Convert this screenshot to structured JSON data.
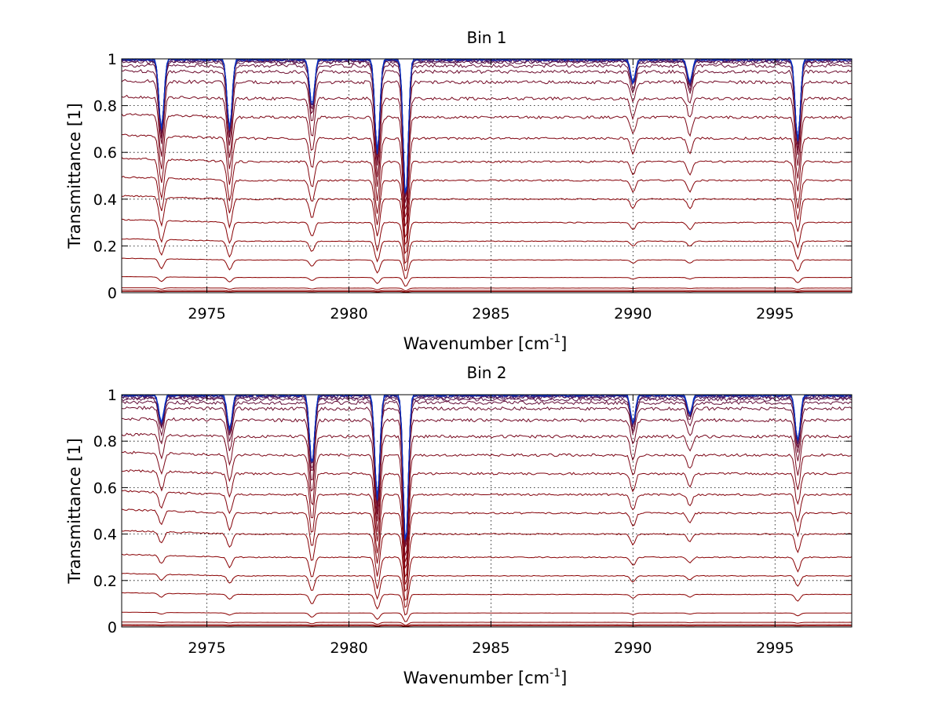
{
  "chart_data": [
    {
      "type": "line",
      "title": "Bin 1",
      "xlabel": {
        "main": "Wavenumber [cm",
        "sup": "-1",
        "end": "]"
      },
      "ylabel": "Transmittance [1]",
      "xlim": [
        2972,
        2997.7
      ],
      "ylim": [
        0,
        1
      ],
      "xticks": [
        2975,
        2980,
        2985,
        2990,
        2995
      ],
      "yticks": [
        0,
        0.2,
        0.4,
        0.6,
        0.8,
        1
      ],
      "ytick_labels": [
        "0",
        "0.2",
        "0.4",
        "0.6",
        "0.8",
        "1"
      ],
      "grid": true,
      "legend": "none",
      "series_count": 24,
      "series_baselines": [
        0.005,
        0.01,
        0.02,
        0.065,
        0.14,
        0.22,
        0.3,
        0.4,
        0.48,
        0.56,
        0.66,
        0.75,
        0.83,
        0.9,
        0.945,
        0.97,
        0.985,
        0.99,
        0.994,
        0.996,
        0.998,
        0.999,
        1.0,
        1.0
      ],
      "absorption_lines": [
        {
          "x": 2973.4,
          "depth": 0.3
        },
        {
          "x": 2975.8,
          "depth": 0.3
        },
        {
          "x": 2978.7,
          "depth": 0.2
        },
        {
          "x": 2981.0,
          "depth": 0.4
        },
        {
          "x": 2982.0,
          "depth": 0.6
        },
        {
          "x": 2990.0,
          "depth": 0.1
        },
        {
          "x": 2992.0,
          "depth": 0.1
        },
        {
          "x": 2995.8,
          "depth": 0.35
        }
      ],
      "color_low": "#8b0000",
      "color_high": "#0033cc"
    },
    {
      "type": "line",
      "title": "Bin 2",
      "xlabel": {
        "main": "Wavenumber [cm",
        "sup": "-1",
        "end": "]"
      },
      "ylabel": "Transmittance [1]",
      "xlim": [
        2972,
        2997.7
      ],
      "ylim": [
        0,
        1
      ],
      "xticks": [
        2975,
        2980,
        2985,
        2990,
        2995
      ],
      "yticks": [
        0,
        0.2,
        0.4,
        0.6,
        0.8,
        1
      ],
      "ytick_labels": [
        "0",
        "0.2",
        "0.4",
        "0.6",
        "0.8",
        "1"
      ],
      "grid": true,
      "legend": "none",
      "series_count": 24,
      "series_baselines": [
        0.005,
        0.01,
        0.02,
        0.06,
        0.14,
        0.22,
        0.3,
        0.4,
        0.49,
        0.57,
        0.66,
        0.74,
        0.82,
        0.89,
        0.94,
        0.965,
        0.98,
        0.988,
        0.993,
        0.996,
        0.998,
        0.999,
        1.0,
        1.0
      ],
      "absorption_lines": [
        {
          "x": 2973.4,
          "depth": 0.12
        },
        {
          "x": 2975.8,
          "depth": 0.15
        },
        {
          "x": 2978.7,
          "depth": 0.3
        },
        {
          "x": 2981.0,
          "depth": 0.45
        },
        {
          "x": 2982.0,
          "depth": 0.65
        },
        {
          "x": 2990.0,
          "depth": 0.12
        },
        {
          "x": 2992.0,
          "depth": 0.08
        },
        {
          "x": 2995.8,
          "depth": 0.2
        }
      ],
      "color_low": "#8b0000",
      "color_high": "#0033cc"
    }
  ]
}
